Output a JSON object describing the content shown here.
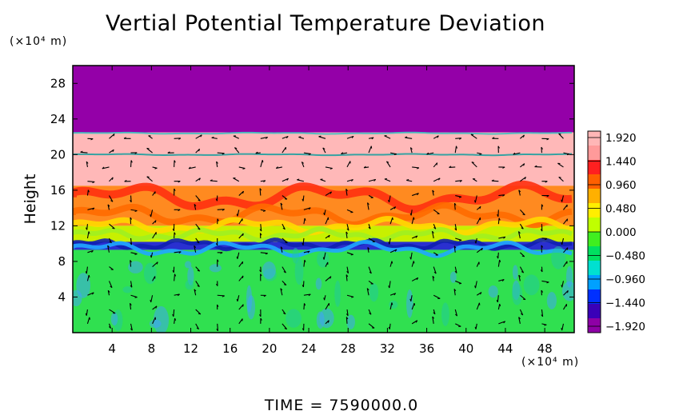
{
  "chart_data": {
    "type": "heatmap",
    "title": "Vertial Potential Temperature Deviation",
    "x_unit": "(×10⁴ m)",
    "y_unit": "(×10⁴ m)",
    "ylabel": "Height",
    "xlabel": "",
    "xlim": [
      0,
      51
    ],
    "ylim": [
      0,
      30
    ],
    "x_ticks": [
      4,
      8,
      12,
      16,
      20,
      24,
      28,
      32,
      36,
      40,
      44,
      48
    ],
    "y_ticks": [
      4,
      8,
      12,
      16,
      20,
      24,
      28
    ],
    "colorbar": {
      "min": -1.92,
      "max": 1.92,
      "tick_labels": [
        "1.920",
        "1.440",
        "0.960",
        "0.480",
        "0.000",
        "−0.480",
        "−0.960",
        "−1.440",
        "−1.920"
      ],
      "colors": [
        "#8e00a6",
        "#3a00b8",
        "#0030ff",
        "#00a0ff",
        "#00e0d0",
        "#00e060",
        "#40ee20",
        "#c0ff00",
        "#ffee00",
        "#ffb000",
        "#ff6000",
        "#ff2020",
        "#ff9a9a",
        "#ffb6b6"
      ]
    },
    "layers": [
      {
        "name": "top",
        "y_from": 22.5,
        "y_to": 30,
        "value": -1.92
      },
      {
        "name": "upper-pink",
        "y_from": 16.5,
        "y_to": 22.5,
        "value": 1.92
      },
      {
        "name": "warm-band",
        "y_from": 12,
        "y_to": 16.5,
        "value": 1.2
      },
      {
        "name": "yellow-band",
        "y_from": 10,
        "y_to": 12,
        "value": 0.6
      },
      {
        "name": "blue-band",
        "y_from": 9.3,
        "y_to": 10.2,
        "value": -1.44
      },
      {
        "name": "lower-green",
        "y_from": 0,
        "y_to": 9.3,
        "value": 0.0
      }
    ]
  },
  "time_label": "TIME  =  7590000.0"
}
